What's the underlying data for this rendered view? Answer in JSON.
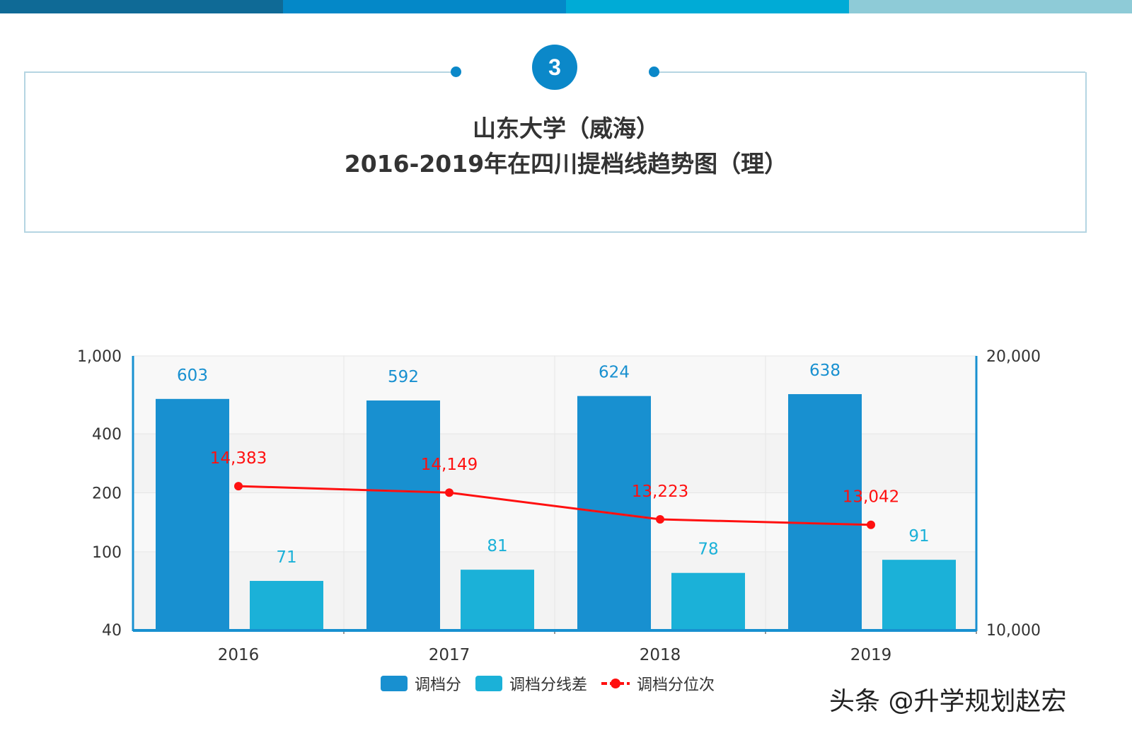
{
  "header": {
    "number": "3",
    "title_line1": "山东大学（威海）",
    "title_line2": "2016-2019年在四川提档线趋势图（理）"
  },
  "colors": {
    "topbar": [
      "#0f6a96",
      "#0488c8",
      "#00abd6",
      "#8ecbd7"
    ],
    "score": "#1890d0",
    "diff": "#1bb1d8",
    "rank": "#ff1010"
  },
  "chart_data": {
    "type": "bar+line",
    "categories": [
      "2016",
      "2017",
      "2018",
      "2019"
    ],
    "series": [
      {
        "name": "调档分",
        "type": "bar",
        "axis": "left",
        "values": [
          603,
          592,
          624,
          638
        ]
      },
      {
        "name": "调档分线差",
        "type": "bar",
        "axis": "left",
        "values": [
          71,
          81,
          78,
          91
        ]
      },
      {
        "name": "调档分位次",
        "type": "line",
        "axis": "right",
        "values": [
          14383,
          14149,
          13223,
          13042
        ]
      }
    ],
    "left_axis": {
      "scale": "log",
      "range": [
        40,
        1000
      ],
      "ticks": [
        "40",
        "100",
        "200",
        "400",
        "1,000"
      ],
      "tick_values": [
        40,
        100,
        200,
        400,
        1000
      ]
    },
    "right_axis": {
      "scale": "log",
      "range": [
        10000,
        20000
      ],
      "ticks": [
        "10,000",
        "20,000"
      ],
      "tick_values": [
        10000,
        20000
      ]
    },
    "data_labels": {
      "score": [
        "603",
        "592",
        "624",
        "638"
      ],
      "diff": [
        "71",
        "81",
        "78",
        "91"
      ],
      "rank": [
        "14,383",
        "14,149",
        "13,223",
        "13,042"
      ]
    },
    "grid": true,
    "legend": "bottom"
  },
  "watermark": "头条 @升学规划赵宏"
}
